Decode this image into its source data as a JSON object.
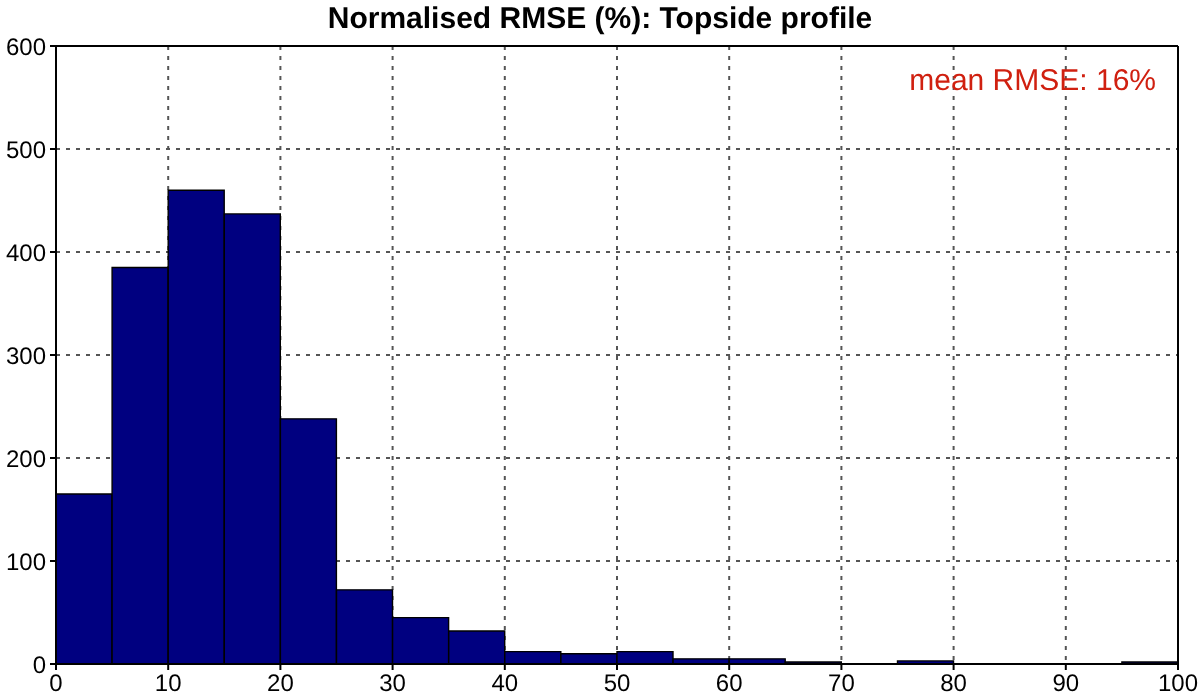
{
  "chart_data": {
    "type": "histogram",
    "title": "Normalised RMSE (%): Topside profile",
    "bins": [
      0,
      5,
      10,
      15,
      20,
      25,
      30,
      35,
      40,
      45,
      50,
      55,
      60,
      65,
      70,
      75,
      80,
      85,
      90,
      95,
      100
    ],
    "values": [
      165,
      385,
      460,
      437,
      238,
      72,
      45,
      32,
      12,
      10,
      12,
      5,
      5,
      2,
      0,
      3,
      0,
      0,
      0,
      2
    ],
    "color": "#000080",
    "xlim": [
      0,
      100
    ],
    "xticks": [
      0,
      10,
      20,
      30,
      40,
      50,
      60,
      70,
      80,
      90,
      100
    ],
    "ylim": [
      0,
      600
    ],
    "yticks": [
      0,
      100,
      200,
      300,
      400,
      500,
      600
    ],
    "grid": true,
    "annotations": [
      "mean RMSE: 16%"
    ]
  }
}
